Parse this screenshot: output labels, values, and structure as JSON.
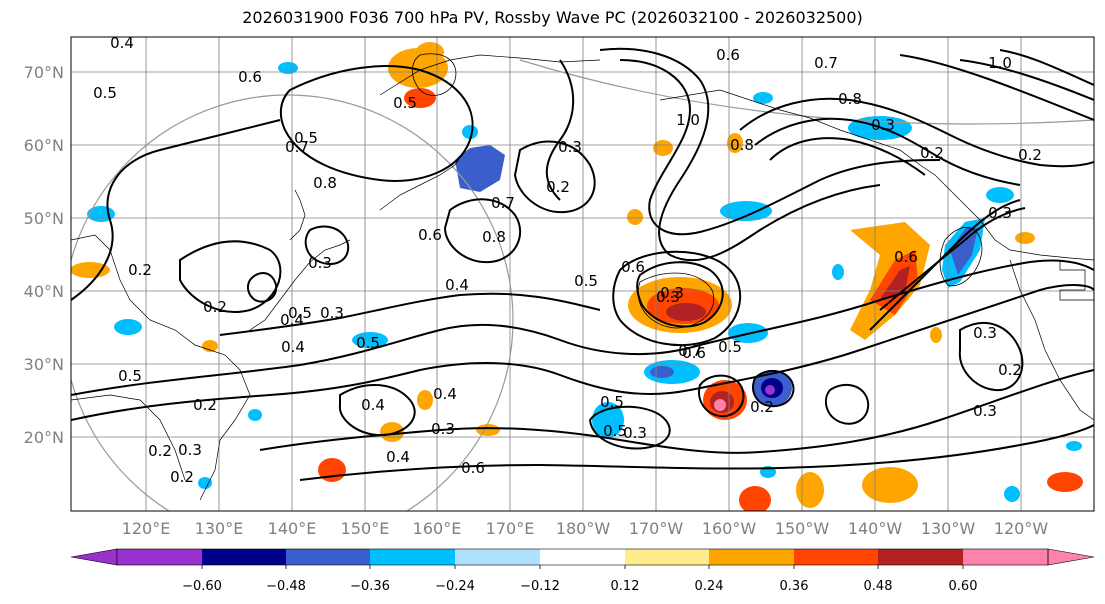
{
  "title": "2026031900 F036 700 hPa PV, Rossby Wave PC (2026032100 - 2026032500)",
  "lat_labels": [
    "70°N",
    "60°N",
    "50°N",
    "40°N",
    "30°N",
    "20°N"
  ],
  "lon_labels": [
    "120°E",
    "130°E",
    "140°E",
    "150°E",
    "160°E",
    "170°E",
    "180°W",
    "170°W",
    "160°W",
    "150°W",
    "140°W",
    "130°W",
    "120°W"
  ],
  "colorbar": {
    "colors": [
      "#9932cc",
      "#00008b",
      "#3a5fcd",
      "#00bfff",
      "#b0e2ff",
      "#ffffff",
      "#ffec8b",
      "#ffa500",
      "#ff4500",
      "#b22222",
      "#ff82ab"
    ],
    "tick_labels": [
      "−0.60",
      "−0.48",
      "−0.36",
      "−0.24",
      "−0.12",
      "0.12",
      "0.24",
      "0.36",
      "0.48",
      "0.60"
    ]
  },
  "contour_labels": [
    "0.4",
    "0.5",
    "0.6",
    "0.5",
    "0.5",
    "0.7",
    "0.8",
    "0.3",
    "0.2",
    "0.6",
    "0.8",
    "0.7",
    "0.6",
    "0.7",
    "0.3",
    "0.4",
    "0.5",
    "0.6",
    "1.0",
    "0.8",
    "0.3",
    "0.5",
    "0.7",
    "0.8",
    "1.0",
    "0.2",
    "0.2",
    "0.3",
    "0.6",
    "0.2",
    "0.5",
    "0.4",
    "0.2",
    "0.3",
    "0.4",
    "0.5",
    "0.4",
    "0.5",
    "0.3",
    "0.2",
    "0.4",
    "0.4",
    "0.5",
    "0.3",
    "0.2",
    "0.6",
    "0.3",
    "0.3",
    "0.2",
    "0.2",
    "0.3",
    "0.2",
    "0.3",
    "0.5",
    "0.6",
    "0.3"
  ],
  "symbols": {
    "bounds-icon": "map-frame"
  }
}
